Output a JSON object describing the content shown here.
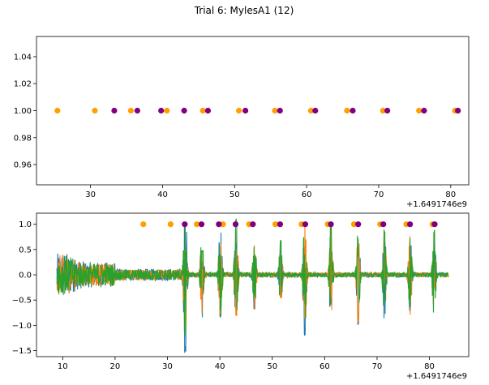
{
  "figure": {
    "suptitle": "Trial 6: MylesA1 (12)"
  },
  "colors": {
    "orange": "#ff9f00",
    "purple": "#800080",
    "series": [
      "#1f77b4",
      "#ff7f0e",
      "#2ca02c"
    ]
  },
  "chart_data": [
    {
      "type": "scatter",
      "title": "",
      "xlabel": "",
      "ylabel": "",
      "offset_label": "+1.6491746e9",
      "xlim": [
        22.5,
        82.5
      ],
      "ylim": [
        0.945,
        1.055
      ],
      "xticks": [
        30,
        40,
        50,
        60,
        70,
        80
      ],
      "yticks": [
        0.96,
        0.98,
        1.0,
        1.02,
        1.04
      ],
      "ytick_labels": [
        "0.96",
        "0.98",
        "1.00",
        "1.02",
        "1.04"
      ],
      "series": [
        {
          "color": "orange",
          "x": [
            25.4,
            30.6,
            35.6,
            40.6,
            45.6,
            50.6,
            55.6,
            60.6,
            65.6,
            70.6,
            75.6,
            80.6
          ],
          "y": [
            1,
            1,
            1,
            1,
            1,
            1,
            1,
            1,
            1,
            1,
            1,
            1
          ]
        },
        {
          "color": "purple",
          "x": [
            33.3,
            36.5,
            39.8,
            43.0,
            46.3,
            51.5,
            56.3,
            61.2,
            66.4,
            71.2,
            76.3,
            81.0
          ],
          "y": [
            1,
            1,
            1,
            1,
            1,
            1,
            1,
            1,
            1,
            1,
            1,
            1
          ]
        }
      ]
    },
    {
      "type": "line",
      "title": "",
      "xlabel": "",
      "ylabel": "",
      "offset_label": "+1.6491746e9",
      "xlim": [
        5,
        87.5
      ],
      "ylim": [
        -1.62,
        1.22
      ],
      "xticks": [
        10,
        20,
        30,
        40,
        50,
        60,
        70,
        80
      ],
      "yticks": [
        -1.5,
        -1.0,
        -0.5,
        0.0,
        0.5,
        1.0
      ],
      "ytick_labels": [
        "−1.5",
        "−1.0",
        "−0.5",
        "0.0",
        "0.5",
        "1.0"
      ],
      "series": [
        {
          "color": "#1f77b4",
          "amplitude": 0.35,
          "x_range": [
            8.9,
            83.6
          ]
        },
        {
          "color": "#ff7f0e",
          "amplitude": 0.3,
          "x_range": [
            8.9,
            83.6
          ]
        },
        {
          "color": "#2ca02c",
          "amplitude": 0.3,
          "x_range": [
            8.9,
            83.6
          ]
        }
      ],
      "burst_centers": [
        33.4,
        36.6,
        40.1,
        43.1,
        46.6,
        51.6,
        56.2,
        61.2,
        66.4,
        71.4,
        76.3,
        80.9
      ],
      "burst_peaks": [
        {
          "x": 33.4,
          "min": -1.55,
          "max": 0.2
        },
        {
          "x": 36.6,
          "min": -0.9,
          "max": 0.5
        },
        {
          "x": 40.1,
          "min": -0.85,
          "max": 1.0
        },
        {
          "x": 43.1,
          "min": -0.5,
          "max": 1.1
        },
        {
          "x": 46.6,
          "min": -0.7,
          "max": 0.8
        },
        {
          "x": 51.6,
          "min": -0.5,
          "max": 0.7
        },
        {
          "x": 56.2,
          "min": -1.2,
          "max": 1.1
        },
        {
          "x": 61.2,
          "min": -0.85,
          "max": 1.05
        },
        {
          "x": 66.4,
          "min": -1.0,
          "max": 1.0
        },
        {
          "x": 71.4,
          "min": -0.8,
          "max": 0.9
        },
        {
          "x": 76.3,
          "min": -0.7,
          "max": 0.9
        },
        {
          "x": 80.9,
          "min": -0.3,
          "max": 0.9
        }
      ],
      "markers": [
        {
          "color": "orange",
          "x": [
            25.4,
            30.6,
            35.6,
            40.6,
            45.6,
            50.6,
            55.6,
            60.6,
            65.6,
            70.6,
            75.6,
            80.6
          ],
          "y": [
            1,
            1,
            1,
            1,
            1,
            1,
            1,
            1,
            1,
            1,
            1,
            1
          ]
        },
        {
          "color": "purple",
          "x": [
            33.3,
            36.5,
            39.8,
            43.0,
            46.3,
            51.5,
            56.3,
            61.2,
            66.4,
            71.2,
            76.3,
            81.0
          ],
          "y": [
            1,
            1,
            1,
            1,
            1,
            1,
            1,
            1,
            1,
            1,
            1,
            1
          ]
        }
      ]
    }
  ]
}
